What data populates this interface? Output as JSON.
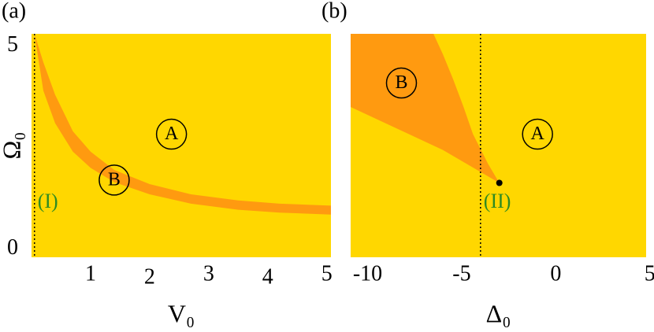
{
  "chart_data": [
    {
      "type": "band",
      "panel_label": "(a)",
      "xlabel": "V₀",
      "ylabel": "Ω₀",
      "xlim": [
        0,
        5.07
      ],
      "ylim": [
        -0.2,
        5.3
      ],
      "xticks": [
        1,
        2,
        3,
        4,
        5
      ],
      "yticks": [
        0,
        5
      ],
      "background": {
        "name": "A",
        "color": "#ffd700"
      },
      "region": {
        "name": "B",
        "color": "#ff9a10",
        "x": [
          0.05,
          0.2,
          0.4,
          0.7,
          1.0,
          1.4,
          2.0,
          2.7,
          3.5,
          4.2,
          5.07
        ],
        "upper": [
          5.3,
          4.6,
          3.8,
          2.9,
          2.4,
          1.95,
          1.6,
          1.35,
          1.2,
          1.12,
          1.07
        ],
        "lower": [
          5.3,
          3.9,
          3.1,
          2.4,
          2.0,
          1.65,
          1.35,
          1.12,
          0.97,
          0.9,
          0.85
        ]
      },
      "vline": {
        "x": 0.05,
        "label": "(I)"
      },
      "annotations": [
        {
          "text": "A",
          "x": 2.37,
          "y": 2.83
        },
        {
          "text": "B",
          "x": 1.4,
          "y": 1.7
        }
      ]
    },
    {
      "type": "polygon",
      "panel_label": "(b)",
      "xlabel": "Δ₀",
      "xlim": [
        -10.9,
        4.8
      ],
      "ylim": [
        -0.2,
        5.3
      ],
      "xticks": [
        -10,
        -5,
        0,
        5
      ],
      "background": {
        "name": "A",
        "color": "#ffd700"
      },
      "region": {
        "name": "B",
        "color": "#ff9a10",
        "x": [
          -10.9,
          -6.5,
          -6.0,
          -5.46,
          -4.9,
          -4.4,
          -3.6,
          -3.0,
          -6.0,
          -10.9
        ],
        "values": [
          5.3,
          5.3,
          4.8,
          4.19,
          3.5,
          2.83,
          2.1,
          1.63,
          2.44,
          3.5
        ]
      },
      "vline": {
        "x": -4.0,
        "label": "(II)"
      },
      "point": {
        "x": -3.0,
        "y": 1.63
      },
      "annotations": [
        {
          "text": "A",
          "x": -0.97,
          "y": 2.83
        },
        {
          "text": "B",
          "x": -8.2,
          "y": 4.09
        }
      ]
    }
  ]
}
